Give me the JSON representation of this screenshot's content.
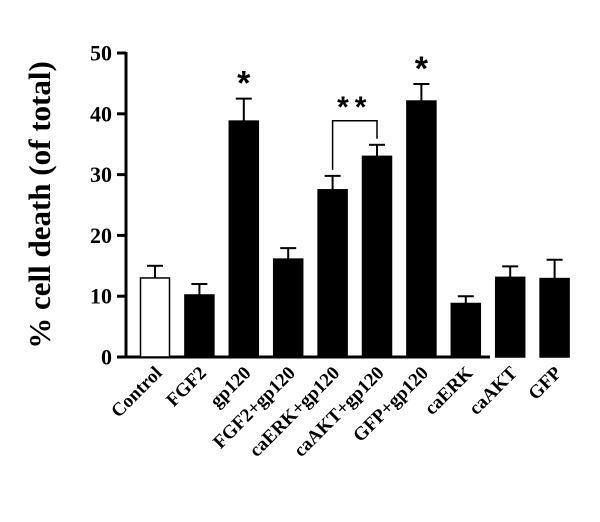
{
  "chart_data": {
    "type": "bar",
    "title": "",
    "xlabel": "",
    "ylabel": "% cell death (of total)",
    "ylim": [
      0,
      50
    ],
    "yticks": [
      0,
      10,
      20,
      30,
      40,
      50
    ],
    "categories": [
      "Control",
      "FGF2",
      "gp120",
      "FGF2+gp120",
      "caERK+gp120",
      "caAKT+gp120",
      "GFP+gp120",
      "caERK",
      "caAKT",
      "GFP"
    ],
    "values": [
      13,
      10.2,
      38.8,
      16.1,
      27.5,
      33,
      42.1,
      8.8,
      13.1,
      12.9
    ],
    "errors": [
      2,
      1.8,
      3.7,
      1.8,
      2.3,
      1.9,
      2.8,
      1.2,
      1.8,
      3.1
    ],
    "bar_fill": [
      "#ffffff",
      "#000000",
      "#000000",
      "#000000",
      "#000000",
      "#000000",
      "#000000",
      "#000000",
      "#000000",
      "#000000"
    ],
    "annotations": [
      {
        "text": "*",
        "category": "gp120"
      },
      {
        "text": "*",
        "category": "GFP+gp120"
      },
      {
        "text": "**",
        "from": "caERK+gp120",
        "to": "caAKT+gp120"
      }
    ],
    "grid": false,
    "legend": "none"
  }
}
